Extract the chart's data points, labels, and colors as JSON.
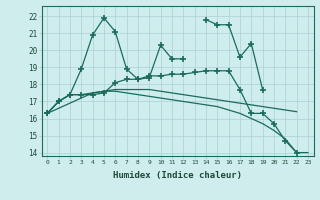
{
  "xlabel": "Humidex (Indice chaleur)",
  "x_values": [
    0,
    1,
    2,
    3,
    4,
    5,
    6,
    7,
    8,
    9,
    10,
    11,
    12,
    13,
    14,
    15,
    16,
    17,
    18,
    19,
    20,
    21,
    22,
    23
  ],
  "line1": [
    16.3,
    17.0,
    17.4,
    18.9,
    20.9,
    21.9,
    21.1,
    18.9,
    18.3,
    18.4,
    20.3,
    19.5,
    19.5,
    null,
    21.8,
    21.5,
    21.5,
    19.6,
    20.4,
    17.7,
    null,
    null,
    null,
    null
  ],
  "line2": [
    16.3,
    17.0,
    17.4,
    17.4,
    17.4,
    17.5,
    18.1,
    18.3,
    18.3,
    18.5,
    18.5,
    18.6,
    18.6,
    18.7,
    18.8,
    18.8,
    18.8,
    17.7,
    16.3,
    16.3,
    15.7,
    14.7,
    14.0,
    null
  ],
  "line3": [
    16.3,
    17.0,
    17.4,
    17.4,
    17.5,
    17.6,
    17.7,
    17.7,
    17.7,
    17.7,
    17.6,
    17.5,
    17.4,
    17.3,
    17.2,
    17.1,
    17.0,
    16.9,
    16.8,
    16.7,
    16.6,
    16.5,
    16.4,
    null
  ],
  "line4": [
    16.3,
    16.6,
    16.9,
    17.2,
    17.5,
    17.6,
    17.6,
    17.5,
    17.4,
    17.3,
    17.2,
    17.1,
    17.0,
    16.9,
    16.8,
    16.7,
    16.5,
    16.3,
    16.0,
    15.7,
    15.3,
    14.8,
    14.0,
    14.0
  ],
  "color": "#1a6b5a",
  "bg_color": "#d0eded",
  "grid_color": "#b0d4d4",
  "ylim": [
    13.8,
    22.6
  ],
  "xlim": [
    -0.5,
    23.5
  ],
  "yticks": [
    14,
    15,
    16,
    17,
    18,
    19,
    20,
    21,
    22
  ],
  "xticks": [
    0,
    1,
    2,
    3,
    4,
    5,
    6,
    7,
    8,
    9,
    10,
    11,
    12,
    13,
    14,
    15,
    16,
    17,
    18,
    19,
    20,
    21,
    22,
    23
  ]
}
